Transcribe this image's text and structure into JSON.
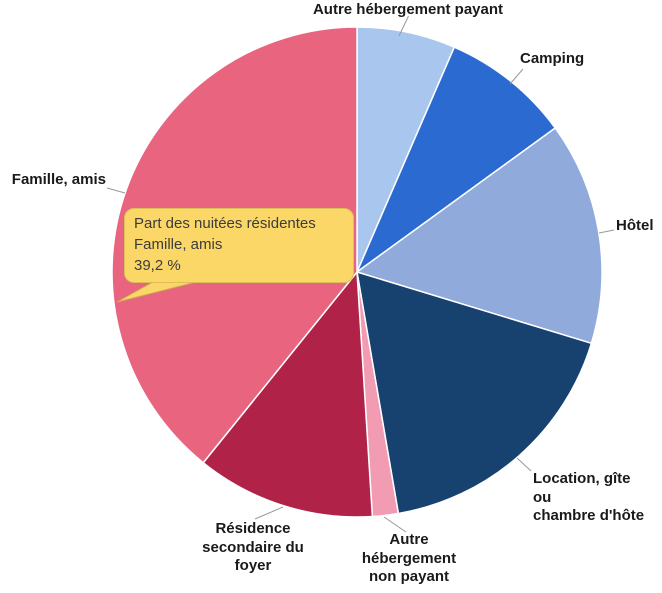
{
  "chart_data": {
    "type": "pie",
    "title": "",
    "series_name": "Part des nuitées résidentes",
    "unit": "%",
    "direction": "clockwise",
    "start_angle_deg": 0,
    "legend": "none",
    "slices": [
      {
        "label": "Autre hébergement payant",
        "label_display": "Autre hébergement payant",
        "value": 6.5,
        "color": "#A9C6EE"
      },
      {
        "label": "Camping",
        "label_display": "Camping",
        "value": 8.5,
        "color": "#2B6BD1"
      },
      {
        "label": "Hôtel",
        "label_display": "Hôtel",
        "value": 14.7,
        "color": "#8FAADB"
      },
      {
        "label": "Location, gîte ou chambre d'hôte",
        "label_display": "Location, gîte\nou\nchambre d'hôte",
        "value": 17.6,
        "color": "#17416F"
      },
      {
        "label": "Autre hébergement non payant",
        "label_display": "Autre\nhébergement\nnon payant",
        "value": 1.7,
        "color": "#F29CB4"
      },
      {
        "label": "Résidence secondaire du foyer",
        "label_display": "Résidence\nsecondaire du\nfoyer",
        "value": 11.8,
        "color": "#B02248"
      },
      {
        "label": "Famille, amis",
        "label_display": "Famille, amis",
        "value": 39.2,
        "color": "#E8647F"
      }
    ]
  },
  "tooltip": {
    "line1": "Part des nuitées résidentes",
    "line2": "Famille, amis",
    "line3": "39,2 %",
    "bg_color": "#FBD768"
  },
  "colors": {
    "slice_border": "#FFFFFF",
    "leader_line": "#999999",
    "label_text": "#1a1a1a",
    "tooltip_border": "#dcbf58"
  }
}
